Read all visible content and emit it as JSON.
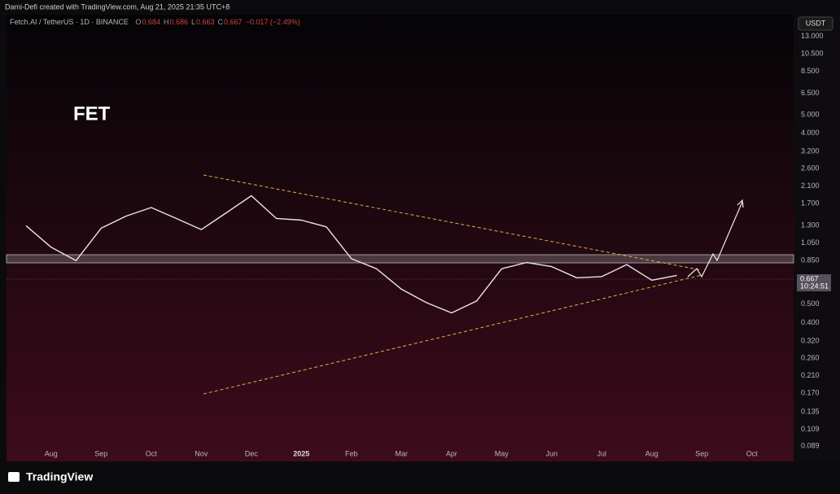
{
  "header": {
    "credit": "Dami-Defi created with TradingView.com, Aug 21, 2025 21:35 UTC+8",
    "symbol": "Fetch.AI / TetherUS · 1D · BINANCE",
    "ohlc": [
      {
        "label": "O",
        "value": "0.684"
      },
      {
        "label": "H",
        "value": "0.686"
      },
      {
        "label": "L",
        "value": "0.663"
      },
      {
        "label": "C",
        "value": "0.667"
      }
    ],
    "change": "−0.017 (−2.49%)",
    "currency": "USDT",
    "price_tag": "0.667",
    "countdown": "10:24:51"
  },
  "footer": {
    "logo": "TradingView"
  },
  "chart_data": {
    "type": "line",
    "title": "FET",
    "log_scale": true,
    "grid": false,
    "categories": [
      null,
      "Aug",
      null,
      "Sep",
      null,
      "Oct",
      null,
      "Nov",
      null,
      "Dec",
      null,
      "2025",
      null,
      "Feb",
      null,
      "Mar",
      null,
      "Apr",
      null,
      "May",
      null,
      "Jun",
      null,
      "Jul",
      null,
      "Aug",
      null,
      "Sep",
      null,
      "Oct",
      null
    ],
    "series": [
      {
        "name": "FET/USDT",
        "color": "#e6e6e6",
        "values": [
          1.3,
          1.0,
          0.85,
          1.26,
          1.46,
          1.62,
          1.42,
          1.24,
          1.52,
          1.87,
          1.42,
          1.39,
          1.28,
          0.87,
          0.77,
          0.6,
          0.51,
          0.45,
          0.52,
          0.77,
          0.83,
          0.79,
          0.69,
          0.7,
          0.81,
          0.67,
          0.71,
          null,
          null,
          null,
          null
        ]
      }
    ],
    "ylim": [
      0.074,
      16.9
    ],
    "yticks": [
      {
        "value": 13,
        "label": "13.000"
      },
      {
        "value": 10.5,
        "label": "10.500"
      },
      {
        "value": 8.5,
        "label": "8.500"
      },
      {
        "value": 6.5,
        "label": "6.500"
      },
      {
        "value": 5,
        "label": "5.000"
      },
      {
        "value": 4,
        "label": "4.000"
      },
      {
        "value": 3.2,
        "label": "3.200"
      },
      {
        "value": 2.6,
        "label": "2.600"
      },
      {
        "value": 2.1,
        "label": "2.100"
      },
      {
        "value": 1.7,
        "label": "1.700"
      },
      {
        "value": 1.3,
        "label": "1.300"
      },
      {
        "value": 1.05,
        "label": "1.050"
      },
      {
        "value": 0.85,
        "label": "0.850"
      },
      {
        "value": 0.5,
        "label": "0.500"
      },
      {
        "value": 0.4,
        "label": "0.400"
      },
      {
        "value": 0.32,
        "label": "0.320"
      },
      {
        "value": 0.26,
        "label": "0.260"
      },
      {
        "value": 0.21,
        "label": "0.210"
      },
      {
        "value": 0.17,
        "label": "0.170"
      },
      {
        "value": 0.135,
        "label": "0.135"
      },
      {
        "value": 0.109,
        "label": "0.109"
      },
      {
        "value": 0.089,
        "label": "0.089"
      }
    ]
  }
}
